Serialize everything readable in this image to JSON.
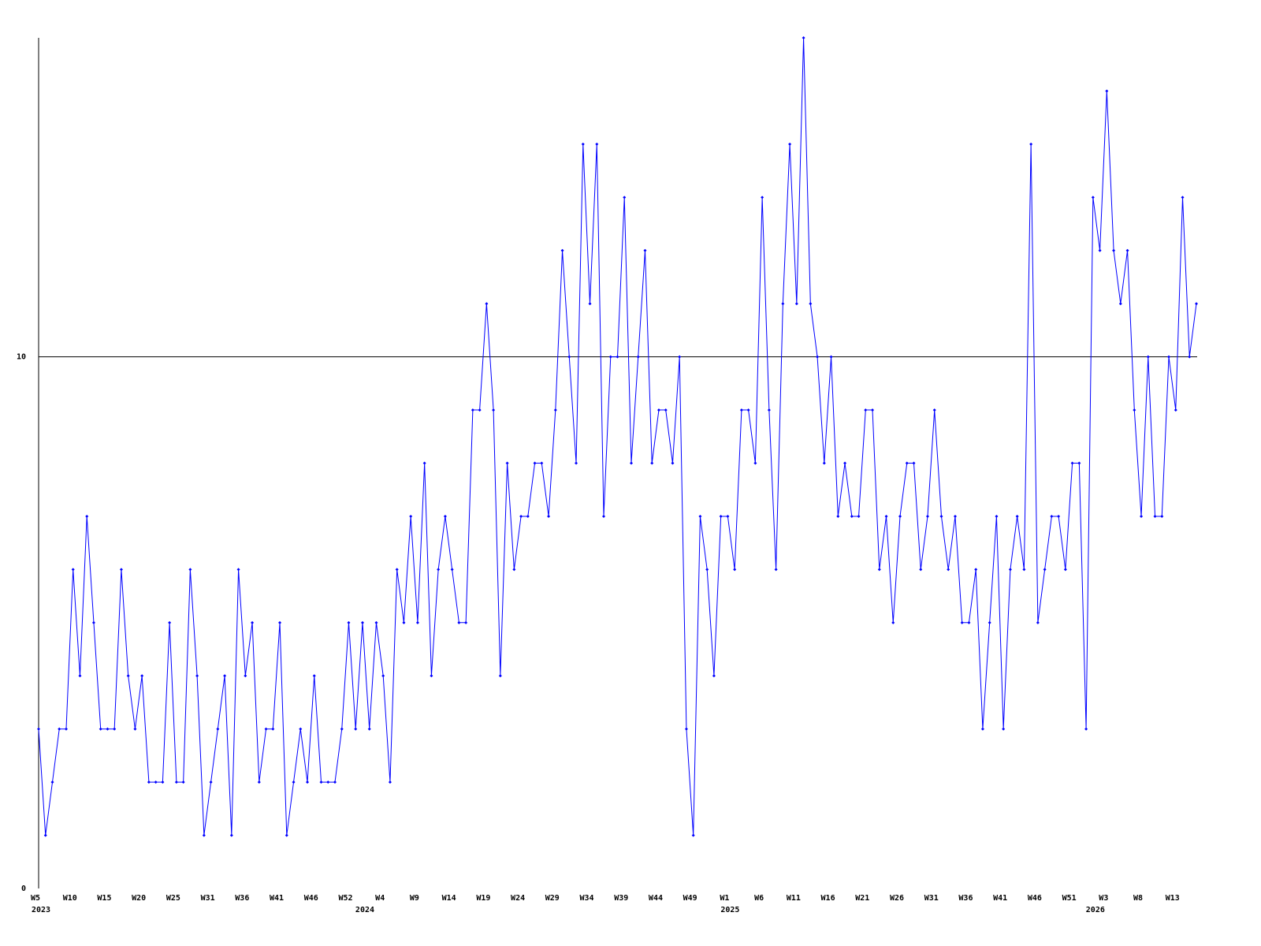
{
  "chart_data": {
    "type": "line",
    "color": "#0000ff",
    "axis_color": "#000000",
    "ylim": [
      0,
      16
    ],
    "yticks": [
      0,
      10
    ],
    "grid": true,
    "categories": [
      "W5",
      null,
      null,
      null,
      null,
      "W10",
      null,
      null,
      null,
      null,
      "W15",
      null,
      null,
      null,
      null,
      "W20",
      null,
      null,
      null,
      null,
      "W25",
      null,
      null,
      null,
      null,
      "W31",
      null,
      null,
      null,
      null,
      "W36",
      null,
      null,
      null,
      null,
      "W41",
      null,
      null,
      null,
      null,
      "W46",
      null,
      null,
      null,
      null,
      "W52",
      null,
      null,
      null,
      null,
      "W4",
      null,
      null,
      null,
      null,
      "W9",
      null,
      null,
      null,
      null,
      "W14",
      null,
      null,
      null,
      null,
      "W19",
      null,
      null,
      null,
      null,
      "W24",
      null,
      null,
      null,
      null,
      "W29",
      null,
      null,
      null,
      null,
      "W34",
      null,
      null,
      null,
      null,
      "W39",
      null,
      null,
      null,
      null,
      "W44",
      null,
      null,
      null,
      null,
      "W49",
      null,
      null,
      null,
      null,
      "W1",
      null,
      null,
      null,
      null,
      "W6",
      null,
      null,
      null,
      null,
      "W11",
      null,
      null,
      null,
      null,
      "W16",
      null,
      null,
      null,
      null,
      "W21",
      null,
      null,
      null,
      null,
      "W26",
      null,
      null,
      null,
      null,
      "W31",
      null,
      null,
      null,
      null,
      "W36",
      null,
      null,
      null,
      null,
      "W41",
      null,
      null,
      null,
      null,
      "W46",
      null,
      null,
      null,
      null,
      "W51",
      null,
      null,
      null,
      null,
      "W3",
      null,
      null,
      null,
      null,
      "W8",
      null,
      null,
      null,
      null,
      "W13",
      null,
      null,
      null
    ],
    "year_labels": [
      "2023",
      null,
      null,
      null,
      null,
      null,
      null,
      null,
      null,
      null,
      null,
      null,
      null,
      null,
      null,
      null,
      null,
      null,
      null,
      null,
      null,
      null,
      null,
      null,
      null,
      null,
      null,
      null,
      null,
      null,
      null,
      null,
      null,
      null,
      null,
      null,
      null,
      null,
      null,
      null,
      null,
      null,
      null,
      null,
      null,
      null,
      null,
      "2024",
      null,
      null,
      null,
      null,
      null,
      null,
      null,
      null,
      null,
      null,
      null,
      null,
      null,
      null,
      null,
      null,
      null,
      null,
      null,
      null,
      null,
      null,
      null,
      null,
      null,
      null,
      null,
      null,
      null,
      null,
      null,
      null,
      null,
      null,
      null,
      null,
      null,
      null,
      null,
      null,
      null,
      null,
      null,
      null,
      null,
      null,
      null,
      null,
      null,
      null,
      null,
      null,
      "2025",
      null,
      null,
      null,
      null,
      null,
      null,
      null,
      null,
      null,
      null,
      null,
      null,
      null,
      null,
      null,
      null,
      null,
      null,
      null,
      null,
      null,
      null,
      null,
      null,
      null,
      null,
      null,
      null,
      null,
      null,
      null,
      null,
      null,
      null,
      null,
      null,
      null,
      null,
      null,
      null,
      null,
      null,
      null,
      null,
      null,
      null,
      null,
      null,
      null,
      null,
      null,
      null,
      "2026",
      null,
      null,
      null,
      null,
      null,
      null,
      null,
      null,
      null,
      null,
      null,
      null,
      null,
      null,
      null
    ],
    "values": [
      3,
      1,
      2,
      3,
      3,
      6,
      4,
      7,
      5,
      3,
      3,
      3,
      6,
      4,
      3,
      4,
      2,
      2,
      2,
      5,
      2,
      2,
      6,
      4,
      1,
      2,
      3,
      4,
      1,
      6,
      4,
      5,
      2,
      3,
      3,
      5,
      1,
      2,
      3,
      2,
      4,
      2,
      2,
      2,
      3,
      5,
      3,
      5,
      3,
      5,
      4,
      2,
      6,
      5,
      7,
      5,
      8,
      4,
      6,
      7,
      6,
      5,
      5,
      9,
      9,
      11,
      9,
      4,
      8,
      6,
      7,
      7,
      8,
      8,
      7,
      9,
      12,
      10,
      8,
      14,
      11,
      14,
      7,
      10,
      10,
      13,
      8,
      10,
      12,
      8,
      9,
      9,
      8,
      10,
      3,
      1,
      7,
      6,
      4,
      7,
      7,
      6,
      9,
      9,
      8,
      13,
      9,
      6,
      11,
      14,
      11,
      16,
      11,
      10,
      8,
      10,
      7,
      8,
      7,
      7,
      9,
      9,
      6,
      7,
      5,
      7,
      8,
      8,
      6,
      7,
      9,
      7,
      6,
      7,
      5,
      5,
      6,
      3,
      5,
      7,
      3,
      6,
      7,
      6,
      14,
      5,
      6,
      7,
      7,
      6,
      8,
      8,
      3,
      13,
      12,
      15,
      12,
      11,
      12,
      9,
      7,
      10,
      7,
      7,
      10,
      9,
      13,
      10,
      11
    ]
  }
}
